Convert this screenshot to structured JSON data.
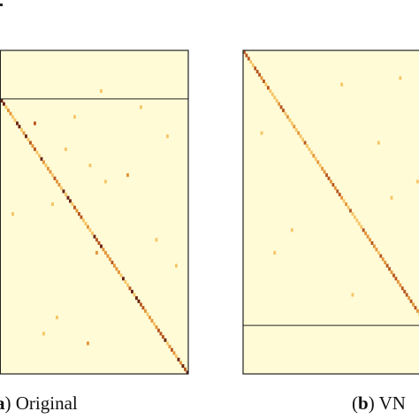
{
  "panels": [
    {
      "id": "a",
      "letter": "a",
      "caption": "Original"
    },
    {
      "id": "b",
      "letter": "b",
      "caption": "VN"
    }
  ],
  "colors": {
    "background": "#fffbd6",
    "frame": "#222222",
    "scale": [
      "#fde9a0",
      "#f6c567",
      "#e3953a",
      "#b8571f",
      "#6b2410"
    ]
  },
  "chart_data": [
    {
      "type": "heatmap",
      "panel": "a",
      "title": "",
      "xlabel": "",
      "ylabel": "",
      "matrix_size": 100,
      "block_split": 15,
      "diagonal": {
        "from": 0,
        "to": 100,
        "base_intensity": 0.55,
        "jitter": 0.35
      },
      "peaks": [
        [
          15,
          15,
          0.95
        ],
        [
          16,
          16,
          0.8
        ],
        [
          46,
          46,
          0.9
        ],
        [
          57,
          57,
          0.85
        ],
        [
          70,
          70,
          0.8
        ],
        [
          99,
          99,
          0.9
        ],
        [
          5,
          5,
          0.7
        ],
        [
          28,
          28,
          0.7
        ],
        [
          88,
          88,
          0.7
        ]
      ],
      "off_diagonal": [
        [
          22,
          30,
          0.7
        ],
        [
          47,
          38,
          0.35
        ],
        [
          87,
          34,
          0.3
        ],
        [
          40,
          62,
          0.3
        ],
        [
          62,
          58,
          0.55
        ],
        [
          90,
          54,
          0.45
        ],
        [
          45,
          8,
          0.3
        ],
        [
          68,
          68,
          0.45
        ],
        [
          20,
          48,
          0.35
        ],
        [
          38,
          72,
          0.5
        ],
        [
          75,
          75,
          0.35
        ],
        [
          30,
          44,
          0.25
        ],
        [
          58,
          85,
          0.3
        ],
        [
          26,
          90,
          0.25
        ],
        [
          12,
          60,
          0.3
        ],
        [
          50,
          20,
          0.25
        ],
        [
          82,
          40,
          0.25
        ],
        [
          66,
          94,
          0.35
        ],
        [
          35,
          55,
          0.3
        ],
        [
          17,
          78,
          0.35
        ]
      ]
    },
    {
      "type": "heatmap",
      "panel": "b",
      "title": "",
      "xlabel": "",
      "ylabel": "",
      "matrix_size": 100,
      "block_split": 85,
      "diagonal": {
        "from": 0,
        "to": 100,
        "base_intensity": 0.5,
        "jitter": 0.3
      },
      "peaks": [
        [
          0,
          0,
          0.75
        ],
        [
          5,
          5,
          0.7
        ],
        [
          18,
          18,
          0.65
        ],
        [
          38,
          38,
          0.7
        ],
        [
          55,
          55,
          0.7
        ],
        [
          83,
          83,
          0.95
        ],
        [
          84,
          84,
          0.8
        ],
        [
          86,
          86,
          0.7
        ]
      ],
      "off_diagonal": [
        [
          10,
          45,
          0.35
        ],
        [
          25,
          8,
          0.25
        ],
        [
          55,
          22,
          0.3
        ],
        [
          28,
          62,
          0.35
        ],
        [
          40,
          80,
          0.25
        ],
        [
          70,
          90,
          0.35
        ],
        [
          12,
          96,
          0.3
        ],
        [
          62,
          14,
          0.25
        ],
        [
          30,
          30,
          0.25
        ],
        [
          45,
          68,
          0.3
        ],
        [
          8,
          72,
          0.25
        ],
        [
          75,
          50,
          0.3
        ]
      ]
    }
  ]
}
